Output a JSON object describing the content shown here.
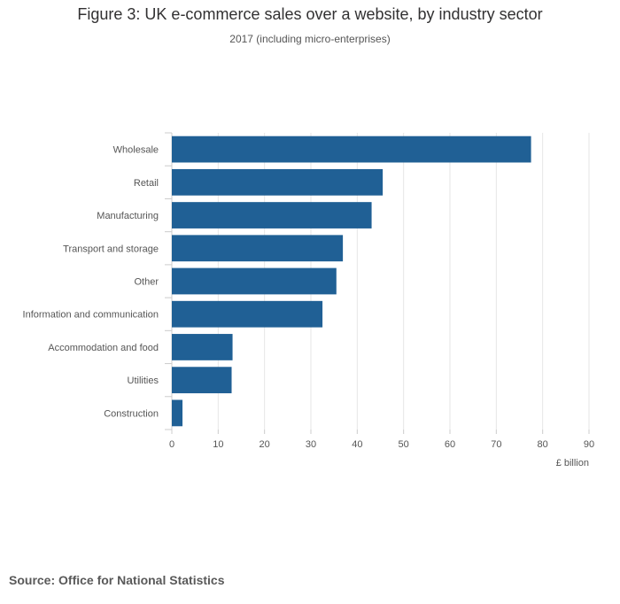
{
  "title": "Figure 3: UK e-commerce sales over a website, by industry sector",
  "subtitle": "2017 (including micro-enterprises)",
  "source": "Source: Office for National Statistics",
  "chart_data": {
    "type": "bar",
    "orientation": "horizontal",
    "categories": [
      "Wholesale",
      "Retail",
      "Manufacturing",
      "Transport and storage",
      "Other",
      "Information and communication",
      "Accommodation and food",
      "Utilities",
      "Construction"
    ],
    "values": [
      77.5,
      45.5,
      43.1,
      36.9,
      35.5,
      32.5,
      13.1,
      12.9,
      2.3
    ],
    "xlabel": "£ billion",
    "ylabel": "",
    "xlim": [
      0,
      90
    ],
    "xticks": [
      "0",
      "10",
      "20",
      "30",
      "40",
      "50",
      "60",
      "70",
      "80",
      "90"
    ],
    "grid": true,
    "bar_color": "#206095",
    "grid_color": "#e6e6e6",
    "axis_color": "#cccccc"
  }
}
